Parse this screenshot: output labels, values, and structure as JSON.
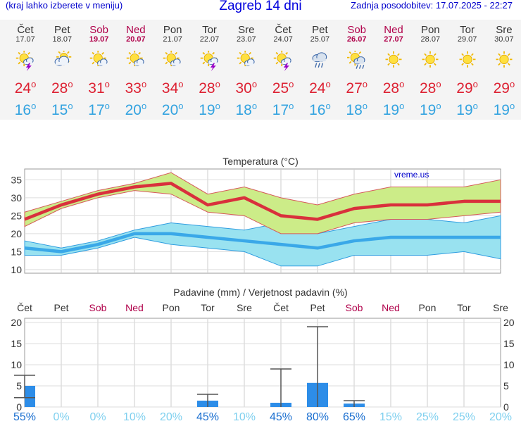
{
  "header": {
    "left_note": "(kraj lahko izberete v meniju)",
    "title": "Zagreb 14 dni",
    "last_update": "Zadnja posodobitev: 17.07.2025 - 22:27"
  },
  "days": [
    {
      "name": "Čet",
      "date": "17.07",
      "weekend": false,
      "icon": "sun-cloud-lightning-icon",
      "max": "24",
      "min": "16"
    },
    {
      "name": "Pet",
      "date": "18.07",
      "weekend": false,
      "icon": "sun-behind-cloud-icon",
      "max": "28",
      "min": "15"
    },
    {
      "name": "Sob",
      "date": "19.07",
      "weekend": true,
      "icon": "sun-small-cloud-icon",
      "max": "31",
      "min": "17"
    },
    {
      "name": "Ned",
      "date": "20.07",
      "weekend": true,
      "icon": "sun-small-cloud-icon",
      "max": "33",
      "min": "20"
    },
    {
      "name": "Pon",
      "date": "21.07",
      "weekend": false,
      "icon": "sun-small-cloud-icon",
      "max": "34",
      "min": "20"
    },
    {
      "name": "Tor",
      "date": "22.07",
      "weekend": false,
      "icon": "sun-cloud-lightning-icon",
      "max": "28",
      "min": "19"
    },
    {
      "name": "Sre",
      "date": "23.07",
      "weekend": false,
      "icon": "sun-small-cloud-icon",
      "max": "30",
      "min": "18"
    },
    {
      "name": "Čet",
      "date": "24.07",
      "weekend": false,
      "icon": "sun-cloud-lightning-icon",
      "max": "25",
      "min": "17"
    },
    {
      "name": "Pet",
      "date": "25.07",
      "weekend": false,
      "icon": "rain-cloud-icon",
      "max": "24",
      "min": "16"
    },
    {
      "name": "Sob",
      "date": "26.07",
      "weekend": true,
      "icon": "sun-cloud-rain-icon",
      "max": "27",
      "min": "18"
    },
    {
      "name": "Ned",
      "date": "27.07",
      "weekend": true,
      "icon": "sun-icon",
      "max": "28",
      "min": "19"
    },
    {
      "name": "Pon",
      "date": "28.07",
      "weekend": false,
      "icon": "sun-icon",
      "max": "28",
      "min": "19"
    },
    {
      "name": "Tor",
      "date": "29.07",
      "weekend": false,
      "icon": "sun-icon",
      "max": "29",
      "min": "19"
    },
    {
      "name": "Sre",
      "date": "30.07",
      "weekend": false,
      "icon": "sun-icon",
      "max": "29",
      "min": "19"
    }
  ],
  "colors": {
    "max_temp": "#dd2233",
    "min_temp": "#33a3e0",
    "weekend": "#b0004a",
    "max_band": "#ccec88",
    "min_band": "#99e2f0",
    "bar": "#2d8de8"
  },
  "chart_data": [
    {
      "type": "line",
      "title": "Temperatura (°C)",
      "watermark": "vreme.us",
      "x": [
        0,
        1,
        2,
        3,
        4,
        5,
        6,
        7,
        8,
        9,
        10,
        11,
        12,
        13
      ],
      "ylim": [
        9,
        38
      ],
      "yticks": [
        10,
        15,
        20,
        25,
        30,
        35
      ],
      "series": [
        {
          "name": "max",
          "values": [
            24,
            28,
            31,
            33,
            34,
            28,
            30,
            25,
            24,
            27,
            28,
            28,
            29,
            29
          ]
        },
        {
          "name": "min",
          "values": [
            16,
            15,
            17,
            20,
            20,
            19,
            18,
            17,
            16,
            18,
            19,
            19,
            19,
            19
          ]
        }
      ],
      "bands": [
        {
          "name": "max-range",
          "upper": [
            26,
            29,
            32,
            34,
            37,
            31,
            33,
            30,
            28,
            31,
            33,
            33,
            33,
            35
          ],
          "lower": [
            22,
            27,
            30,
            32,
            31,
            26,
            25,
            20,
            20,
            23,
            24,
            24,
            25,
            26
          ]
        },
        {
          "name": "min-range",
          "upper": [
            18,
            16,
            18,
            21,
            23,
            22,
            21,
            23,
            20,
            22,
            24,
            24,
            23,
            25
          ],
          "lower": [
            14,
            14,
            16,
            19,
            17,
            16,
            15,
            11,
            11,
            14,
            14,
            14,
            15,
            13
          ]
        }
      ]
    },
    {
      "type": "bar",
      "title": "Padavine (mm) / Verjetnost padavin (%)",
      "categories": [
        "Čet",
        "Pet",
        "Sob",
        "Ned",
        "Pon",
        "Tor",
        "Sre",
        "Čet",
        "Pet",
        "Sob",
        "Ned",
        "Pon",
        "Tor",
        "Sre"
      ],
      "weekend": [
        false,
        false,
        true,
        true,
        false,
        false,
        false,
        false,
        false,
        true,
        true,
        false,
        false,
        false
      ],
      "ylim": [
        0,
        21
      ],
      "yticks": [
        0,
        5,
        10,
        15,
        20
      ],
      "values": [
        5,
        0,
        0,
        0,
        0,
        1.5,
        0,
        1,
        5.7,
        0.8,
        0,
        0,
        0,
        0
      ],
      "error_max": [
        7.5,
        0,
        0,
        0,
        0,
        3,
        0,
        9,
        19,
        1.5,
        0,
        0,
        0,
        0
      ],
      "error_min": [
        2.2,
        0,
        0,
        0,
        0,
        0,
        0,
        0,
        0,
        0,
        0,
        0,
        0,
        0
      ],
      "probability": [
        "55%",
        "0%",
        "0%",
        "10%",
        "20%",
        "45%",
        "10%",
        "45%",
        "80%",
        "65%",
        "15%",
        "25%",
        "25%",
        "20%"
      ]
    }
  ]
}
